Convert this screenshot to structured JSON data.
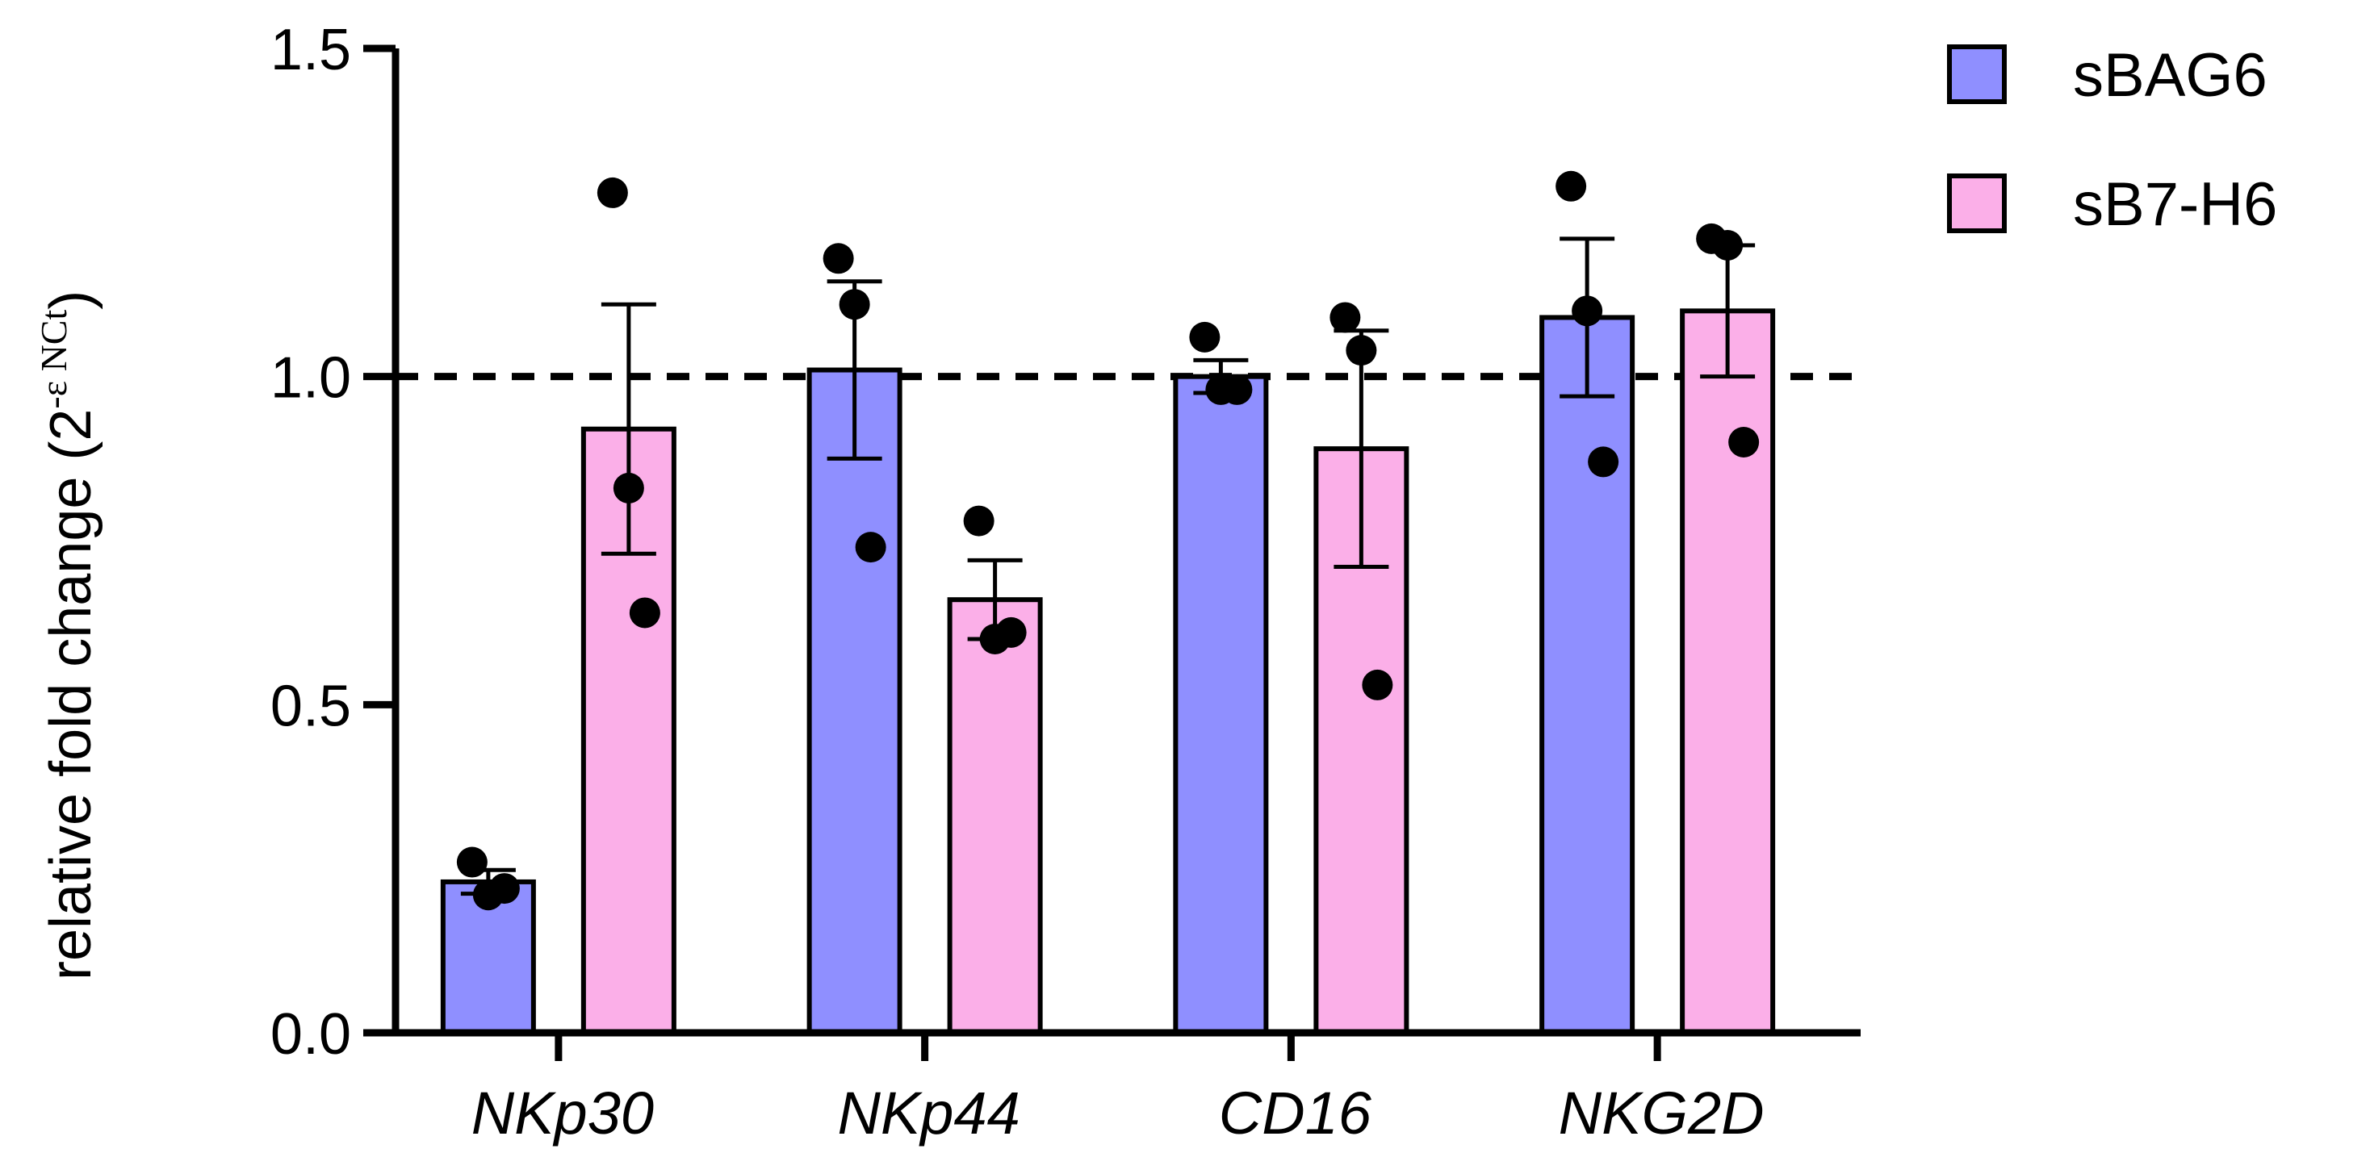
{
  "chart_data": {
    "type": "bar",
    "title": "",
    "xlabel": "",
    "ylabel": "relative fold change (2",
    "ylabel_superscript": "-ε NCt",
    "ylabel_close": ")",
    "ylim": [
      0,
      1.5
    ],
    "yticks": [
      0.0,
      0.5,
      1.0,
      1.5
    ],
    "ytick_labels": [
      "0.0",
      "0.5",
      "1.0",
      "1.5"
    ],
    "reference_line": 1.0,
    "categories": [
      "NKp30",
      "NKp44",
      "CD16",
      "NKG2D"
    ],
    "series": [
      {
        "name": "sBAG6",
        "color": "#8F8FFF",
        "values": [
          0.23,
          1.01,
          1.0,
          1.09
        ],
        "errors": [
          0.018,
          0.135,
          0.025,
          0.12
        ],
        "points": [
          [
            0.26,
            0.21,
            0.22
          ],
          [
            1.18,
            1.11,
            0.74
          ],
          [
            1.06,
            0.98,
            0.98
          ],
          [
            1.29,
            1.1,
            0.87
          ]
        ]
      },
      {
        "name": "sB7-H6",
        "color": "#FBAFE8",
        "values": [
          0.92,
          0.66,
          0.89,
          1.1
        ],
        "errors": [
          0.19,
          0.06,
          0.18,
          0.1
        ],
        "points": [
          [
            1.28,
            0.83,
            0.64
          ],
          [
            0.78,
            0.6,
            0.61
          ],
          [
            1.09,
            1.04,
            0.53
          ],
          [
            1.21,
            1.2,
            0.9
          ]
        ]
      }
    ],
    "legend_position": "top-right",
    "grid": false
  }
}
